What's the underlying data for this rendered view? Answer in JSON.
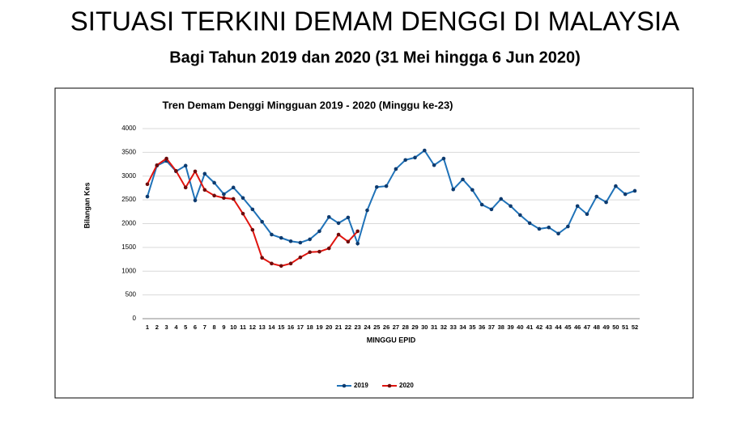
{
  "page_title": "SITUASI TERKINI DEMAM DENGGI DI MALAYSIA",
  "page_subtitle": "Bagi Tahun 2019 dan 2020 (31 Mei hingga 6 Jun 2020)",
  "chart_data": {
    "type": "line",
    "title": "Tren Demam Denggi Mingguan 2019 - 2020 (Minggu ke-23)",
    "y_label": "Bilangan Kes",
    "x_label": "MINGGU EPID",
    "x": [
      1,
      2,
      3,
      4,
      5,
      6,
      7,
      8,
      9,
      10,
      11,
      12,
      13,
      14,
      15,
      16,
      17,
      18,
      19,
      20,
      21,
      22,
      23,
      24,
      25,
      26,
      27,
      28,
      29,
      30,
      31,
      32,
      33,
      34,
      35,
      36,
      37,
      38,
      39,
      40,
      41,
      42,
      43,
      44,
      45,
      46,
      47,
      48,
      49,
      50,
      51,
      52
    ],
    "xlim": [
      1,
      52
    ],
    "ylim": [
      0,
      4000
    ],
    "yticks": [
      0,
      500,
      1000,
      1500,
      2000,
      2500,
      3000,
      3500,
      4000
    ],
    "grid": true,
    "legend": "bottom",
    "series": [
      {
        "name": "2019",
        "color": "#1f72b8",
        "marker_color": "#0d3a6e",
        "values": [
          2570,
          3220,
          3320,
          3100,
          3220,
          2490,
          3050,
          2860,
          2620,
          2760,
          2540,
          2300,
          2040,
          1770,
          1700,
          1630,
          1600,
          1670,
          1840,
          2140,
          2010,
          2130,
          1580,
          2280,
          2770,
          2790,
          3150,
          3340,
          3390,
          3540,
          3230,
          3370,
          2720,
          2930,
          2710,
          2400,
          2300,
          2520,
          2370,
          2180,
          2010,
          1890,
          1920,
          1790,
          1940,
          2370,
          2200,
          2570,
          2450,
          2790,
          2620,
          2690
        ]
      },
      {
        "name": "2020",
        "color": "#e0140e",
        "marker_color": "#6e0a0a",
        "values": [
          2830,
          3230,
          3370,
          3110,
          2760,
          3100,
          2710,
          2590,
          2540,
          2520,
          2210,
          1870,
          1280,
          1160,
          1110,
          1160,
          1290,
          1400,
          1410,
          1480,
          1770,
          1620,
          1840,
          null,
          null,
          null,
          null,
          null,
          null,
          null,
          null,
          null,
          null,
          null,
          null,
          null,
          null,
          null,
          null,
          null,
          null,
          null,
          null,
          null,
          null,
          null,
          null,
          null,
          null,
          null,
          null,
          null
        ]
      }
    ]
  }
}
